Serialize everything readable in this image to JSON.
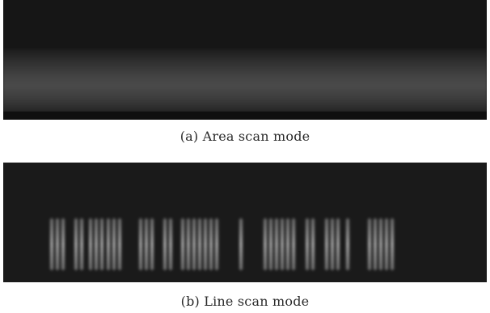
{
  "panels": [
    {
      "caption": "(a)  Area scan mode"
    },
    {
      "caption": "(b)  Line scan mode"
    }
  ],
  "colors": {
    "background": "#ffffff",
    "image_dark": "#161616",
    "stripe": "#9a9a9a"
  }
}
